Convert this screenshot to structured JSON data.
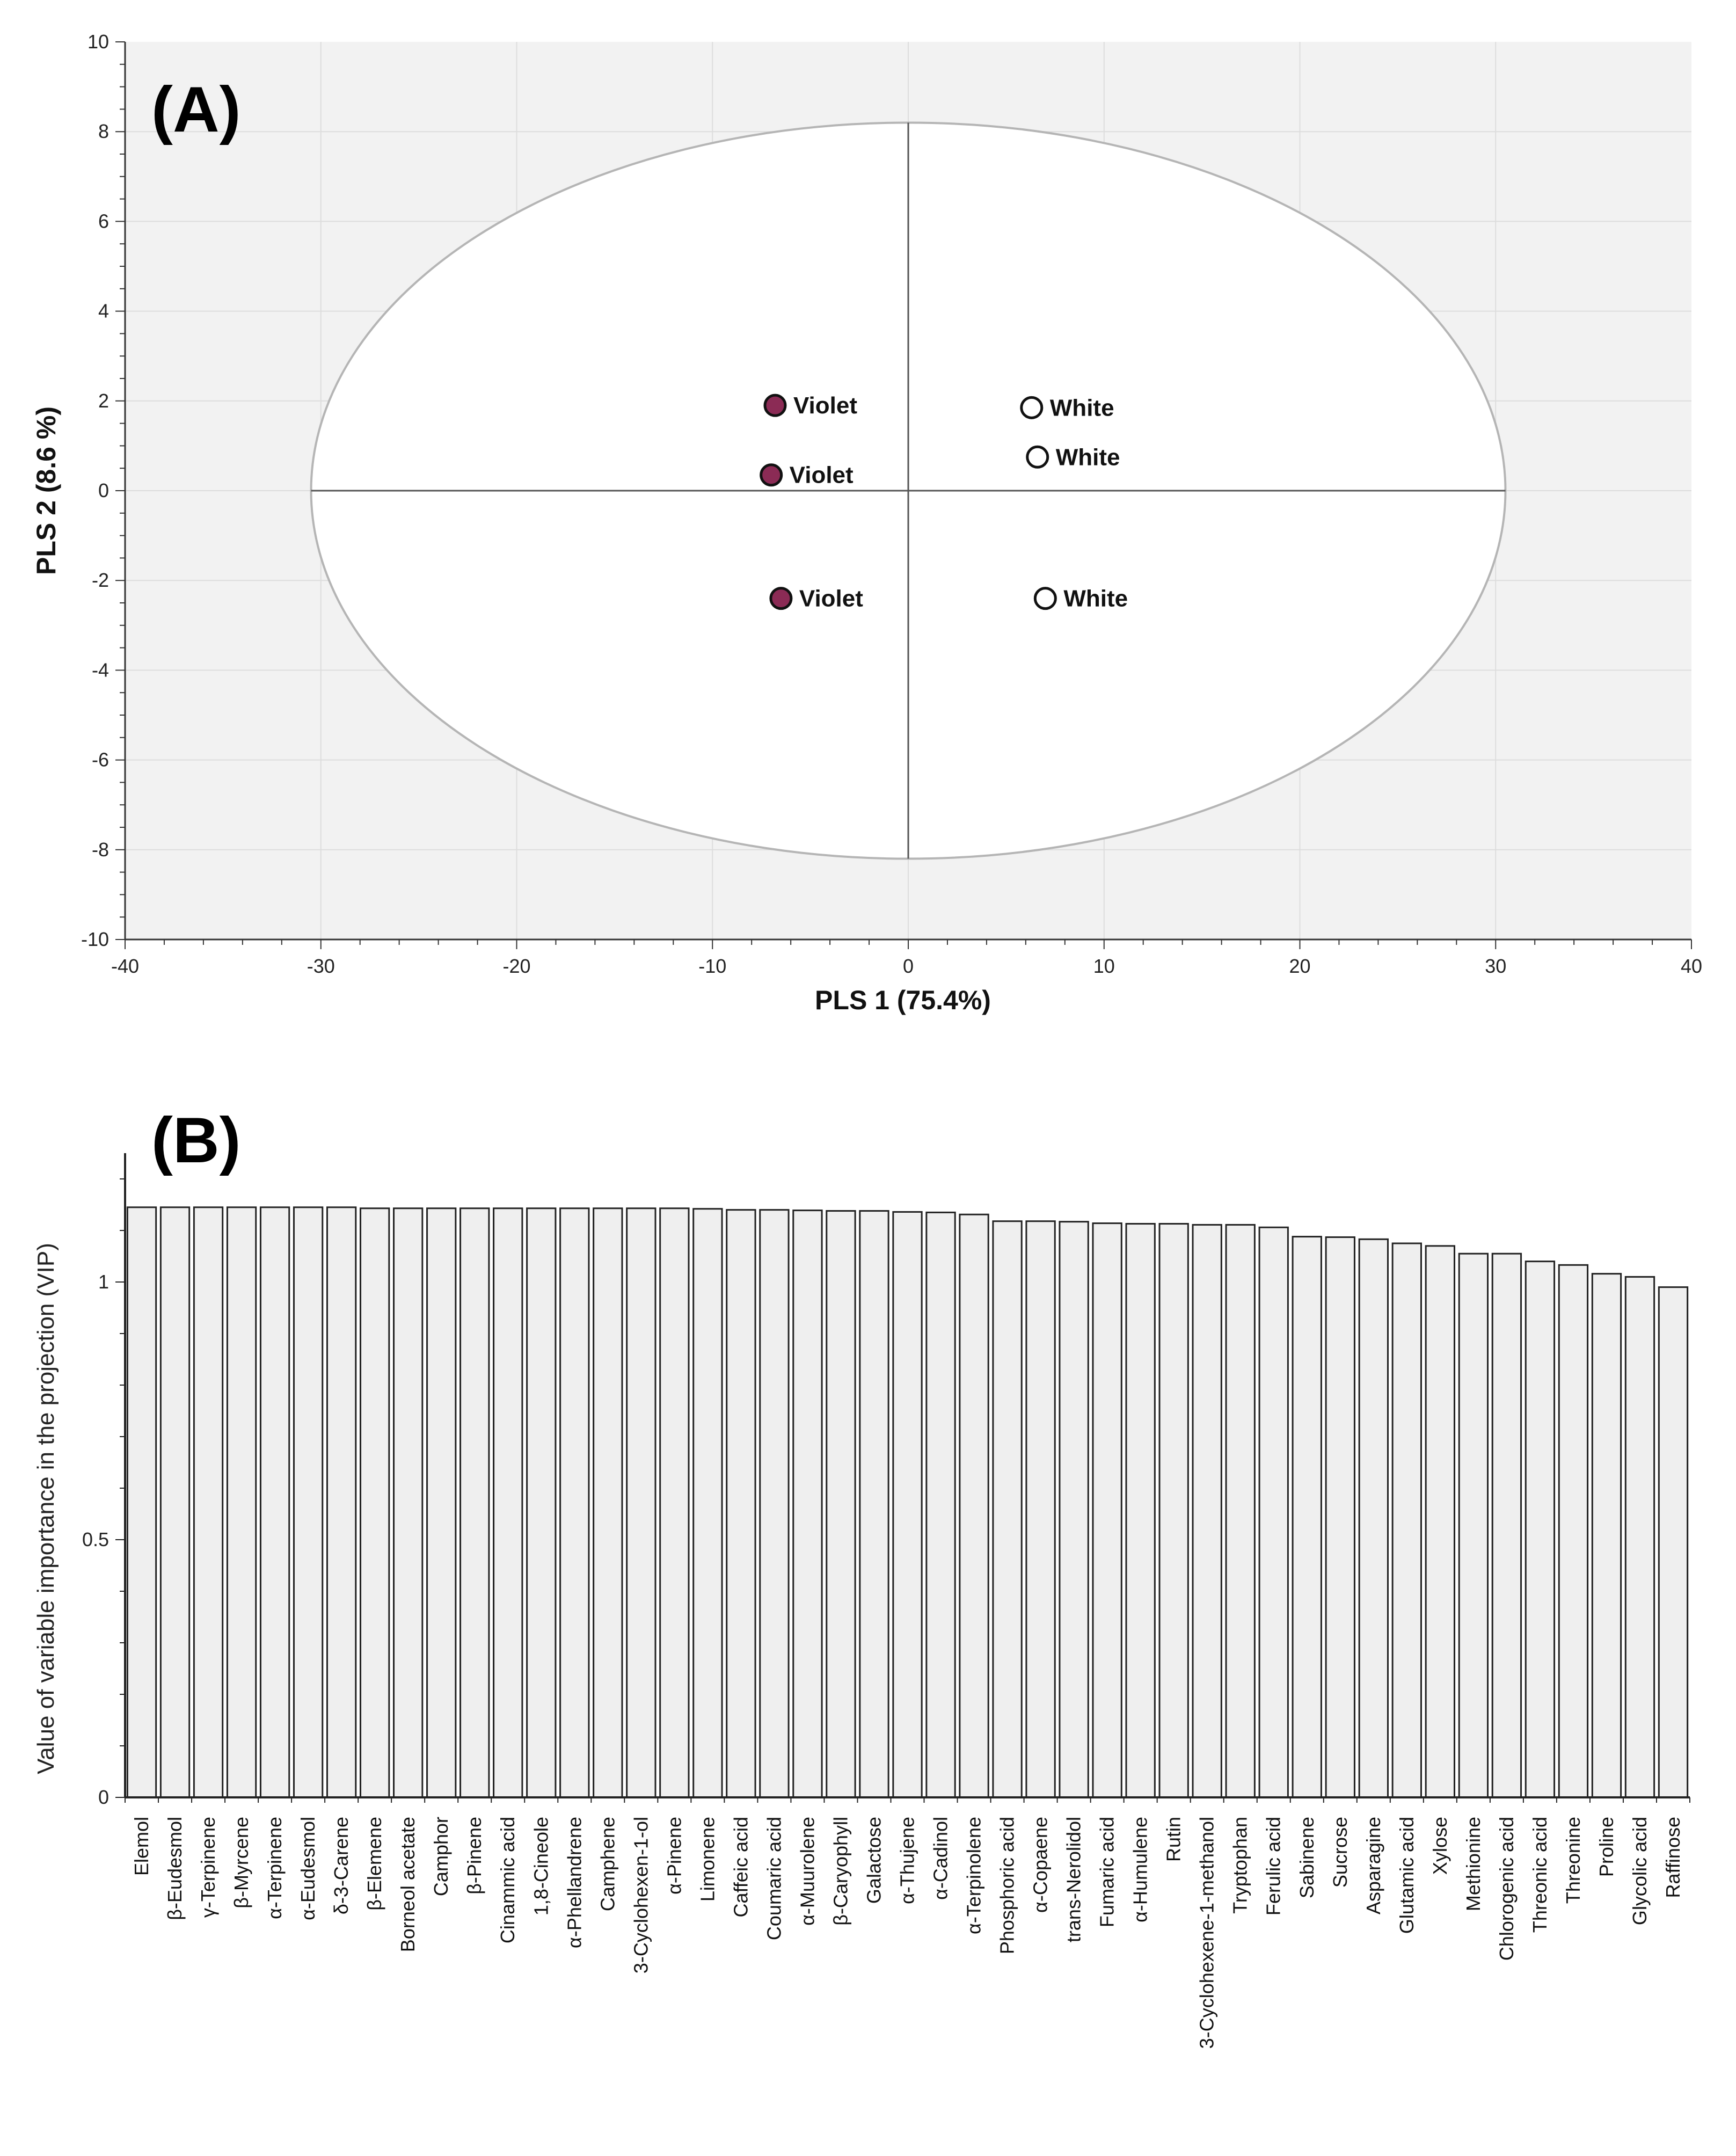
{
  "colors": {
    "plot_bg": "#f2f2f2",
    "grid": "#dddddd",
    "ellipse_stroke": "#b5b5b5",
    "violet": "#8b2b55",
    "white_marker": "#ffffff",
    "bar_fill": "#efefef",
    "bar_stroke": "#222222"
  },
  "chart_data": [
    {
      "type": "scatter",
      "panel_label": "(A)",
      "xlabel": "PLS 1 (75.4%)",
      "ylabel": "PLS 2 (8.6 %)",
      "xlim": [
        -40,
        40
      ],
      "ylim": [
        -10,
        10
      ],
      "xticks": [
        -40,
        -30,
        -20,
        -10,
        0,
        10,
        20,
        30,
        40
      ],
      "yticks": [
        -10,
        -8,
        -6,
        -4,
        -2,
        0,
        2,
        4,
        6,
        8,
        10
      ],
      "grid": true,
      "ellipse": {
        "cx": 0,
        "cy": 0,
        "rx": 30.5,
        "ry": 8.2
      },
      "series": [
        {
          "name": "Violet",
          "color": "#8b2b55",
          "points": [
            {
              "x": -6.8,
              "y": 1.9,
              "label": "Violet"
            },
            {
              "x": -7.0,
              "y": 0.35,
              "label": "Violet"
            },
            {
              "x": -6.5,
              "y": -2.4,
              "label": "Violet"
            }
          ]
        },
        {
          "name": "White",
          "color": "#ffffff",
          "points": [
            {
              "x": 6.3,
              "y": 1.85,
              "label": "White"
            },
            {
              "x": 6.6,
              "y": 0.75,
              "label": "White"
            },
            {
              "x": 7.0,
              "y": -2.4,
              "label": "White"
            }
          ]
        }
      ]
    },
    {
      "type": "bar",
      "panel_label": "(B)",
      "ylabel": "Value of variable importance in the projection (VIP)",
      "ylim": [
        0,
        1.25
      ],
      "yticks": [
        0,
        0.5,
        1
      ],
      "ytick_labels": [
        "0",
        "0.5",
        "1"
      ],
      "grid": false,
      "categories": [
        "Elemol",
        "β-Eudesmol",
        "γ-Terpinene",
        "β-Myrcene",
        "α-Terpinene",
        "α-Eudesmol",
        "δ-3-Carene",
        "β-Elemene",
        "Borneol acetate",
        "Camphor",
        "β-Pinene",
        "Cinammic acid",
        "1,8-Cineole",
        "α-Phellandrene",
        "Camphene",
        "3-Cyclohexen-1-ol",
        "α-Pinene",
        "Limonene",
        "Caffeic acid",
        "Coumaric acid",
        "α-Muurolene",
        "β-Caryophyll",
        "Galactose",
        "α-Thujene",
        "α-Cadinol",
        "α-Terpinolene",
        "Phosphoric acid",
        "α-Copaene",
        "trans-Nerolidol",
        "Fumaric acid",
        "α-Humulene",
        "Rutin",
        "3-Cyclohexene-1-methanol",
        "Tryptophan",
        "Ferulic acid",
        "Sabinene",
        "Sucrose",
        "Asparagine",
        "Glutamic acid",
        "Xylose",
        "Methionine",
        "Chlorogenic acid",
        "Threonic acid",
        "Threonine",
        "Proline",
        "Glycolic acid",
        "Raffinose"
      ],
      "values": [
        1.145,
        1.145,
        1.145,
        1.145,
        1.145,
        1.145,
        1.145,
        1.143,
        1.143,
        1.143,
        1.143,
        1.143,
        1.143,
        1.143,
        1.143,
        1.143,
        1.143,
        1.142,
        1.14,
        1.14,
        1.139,
        1.138,
        1.138,
        1.136,
        1.135,
        1.131,
        1.118,
        1.118,
        1.117,
        1.114,
        1.113,
        1.113,
        1.111,
        1.111,
        1.106,
        1.088,
        1.087,
        1.083,
        1.075,
        1.07,
        1.055,
        1.055,
        1.04,
        1.033,
        1.016,
        1.01,
        0.99
      ]
    }
  ]
}
